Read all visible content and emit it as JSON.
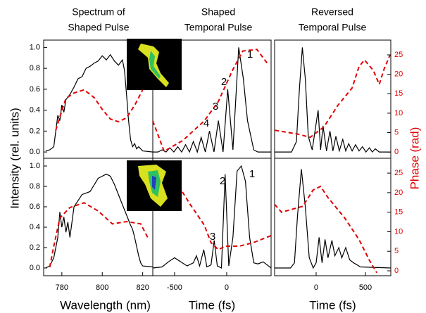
{
  "y_label": "Intensity (rel. units)",
  "y2_label": "Phase (rad)",
  "chart_data": [
    {
      "type": "line",
      "title": [
        "Spectrum of",
        "Shaped Pulse"
      ],
      "xlim": [
        771,
        825
      ],
      "ylim": [
        -0.06,
        1.07
      ],
      "y2lim": [
        -1.6,
        28.8
      ],
      "yticks": [
        {
          "value": 0,
          "label": "0.0"
        },
        {
          "value": 0.2,
          "label": "0.2"
        },
        {
          "value": 0.4,
          "label": "0.4"
        },
        {
          "value": 0.6,
          "label": "0.6"
        },
        {
          "value": 0.8,
          "label": "0.8"
        },
        {
          "value": 1,
          "label": "1.0"
        }
      ],
      "series": [
        {
          "color": "#000000",
          "x": [
            772,
            774,
            776,
            777,
            778,
            779,
            780,
            781,
            782,
            784,
            786,
            788,
            790,
            792,
            794,
            796,
            798,
            800,
            802,
            804,
            806,
            808,
            810,
            811,
            812,
            813,
            814,
            815,
            816,
            817,
            818,
            820,
            825
          ],
          "values": [
            0.01,
            0.02,
            0.05,
            0.2,
            0.35,
            0.3,
            0.45,
            0.38,
            0.5,
            0.55,
            0.62,
            0.7,
            0.72,
            0.8,
            0.82,
            0.85,
            0.87,
            0.92,
            0.88,
            0.93,
            0.87,
            0.83,
            0.88,
            0.78,
            0.55,
            0.3,
            0.12,
            0.05,
            0.08,
            0.03,
            0.05,
            0.01,
            0
          ]
        },
        {
          "color": "#e00000",
          "dashed": true,
          "axis": "y2",
          "x": [
            777,
            779,
            782,
            786,
            791,
            796,
            800,
            804,
            808,
            812,
            816,
            820,
            824
          ],
          "values": [
            5.6,
            9,
            13.8,
            15.2,
            16,
            14,
            11,
            8.5,
            7.8,
            8.8,
            12,
            16,
            18
          ]
        }
      ]
    },
    {
      "type": "line",
      "title": [
        "Shaped",
        "Temporal Pulse"
      ],
      "xlim": [
        -709,
        426
      ],
      "ylim": [
        -0.06,
        1.07
      ],
      "y2lim": [
        -1.6,
        28.8
      ],
      "annotations": [
        "1",
        "2",
        "3",
        "4"
      ],
      "series": [
        {
          "color": "#000000",
          "x": [
            -709,
            -660,
            -620,
            -582,
            -545,
            -507,
            -470,
            -432,
            -395,
            -357,
            -320,
            -282,
            -245,
            -205,
            -165,
            -122,
            -80,
            -35,
            10,
            60,
            115,
            160,
            200,
            260,
            300,
            426
          ],
          "values": [
            0,
            0,
            0.02,
            0,
            0.04,
            0,
            0.05,
            0,
            0.07,
            0,
            0.1,
            0,
            0.14,
            0,
            0.2,
            0,
            0.3,
            0,
            0.6,
            0.02,
            1,
            0.7,
            0.3,
            0.02,
            0,
            0
          ]
        },
        {
          "color": "#e00000",
          "dashed": true,
          "axis": "y2",
          "x": [
            -709,
            -600,
            -420,
            -215,
            -80,
            55,
            155,
            290,
            390
          ],
          "values": [
            8,
            0.2,
            3,
            8,
            13,
            21,
            26,
            26.4,
            22.8
          ]
        }
      ]
    },
    {
      "type": "line",
      "title": [
        "Reversed",
        "Temporal Pulse"
      ],
      "xlim": [
        -421,
        757
      ],
      "ylim": [
        -0.06,
        1.07
      ],
      "y2lim": [
        -1.6,
        28.8
      ],
      "y2ticks": [
        0,
        5,
        10,
        15,
        20,
        25
      ],
      "series": [
        {
          "color": "#000000",
          "x": [
            -421,
            -250,
            -200,
            -170,
            -140,
            -110,
            -80,
            -40,
            20,
            45,
            70,
            105,
            140,
            170,
            200,
            235,
            270,
            300,
            330,
            365,
            400,
            435,
            470,
            505,
            540,
            570,
            600,
            640,
            757
          ],
          "values": [
            0,
            0,
            0.1,
            0.6,
            1,
            0.7,
            0.15,
            0.02,
            0.4,
            0.02,
            0.25,
            0.01,
            0.2,
            0.01,
            0.15,
            0.01,
            0.12,
            0.01,
            0.08,
            0.01,
            0.07,
            0.01,
            0.05,
            0,
            0.04,
            0,
            0.03,
            0,
            0
          ]
        },
        {
          "color": "#e00000",
          "dashed": true,
          "axis": "y2",
          "x": [
            -421,
            -200,
            -60,
            80,
            220,
            365,
            435,
            490,
            580,
            640,
            690,
            750
          ],
          "values": [
            5.6,
            4.7,
            3.8,
            6.5,
            12,
            16.5,
            22,
            23.7,
            21,
            17.4,
            21.4,
            25
          ]
        }
      ]
    },
    {
      "type": "line",
      "xlim": [
        771,
        825
      ],
      "ylim": [
        -0.076,
        1.076
      ],
      "y2lim": [
        -1.26,
        28.8
      ],
      "xticks": [
        780,
        800,
        820
      ],
      "xlabel": "Wavelength (nm)",
      "yticks": [
        {
          "value": 0,
          "label": "0.0"
        },
        {
          "value": 0.2,
          "label": "0.2"
        },
        {
          "value": 0.4,
          "label": "0.4"
        },
        {
          "value": 0.6,
          "label": "0.6"
        },
        {
          "value": 0.8,
          "label": "0.8"
        },
        {
          "value": 1,
          "label": "1.0"
        }
      ],
      "series": [
        {
          "color": "#000000",
          "x": [
            772,
            774,
            776,
            778,
            779,
            780,
            781,
            782,
            783,
            784,
            786,
            790,
            794,
            798,
            802,
            804,
            806,
            808,
            810,
            812,
            814,
            815,
            816,
            818,
            819,
            820,
            825
          ],
          "values": [
            0,
            0.02,
            0.1,
            0.3,
            0.55,
            0.4,
            0.5,
            0.35,
            0.45,
            0.3,
            0.6,
            0.72,
            0.75,
            0.88,
            0.92,
            0.9,
            0.82,
            0.72,
            0.62,
            0.52,
            0.42,
            0.38,
            0.3,
            0.12,
            0.05,
            0.02,
            0.01
          ]
        },
        {
          "color": "#e00000",
          "dashed": true,
          "axis": "y2",
          "x": [
            774,
            776,
            779,
            784,
            791,
            798,
            805,
            812,
            819,
            823
          ],
          "values": [
            0.9,
            6.3,
            13.5,
            16.2,
            17.4,
            15.3,
            12,
            12.6,
            12,
            8
          ]
        }
      ]
    },
    {
      "type": "line",
      "xlim": [
        -709,
        426
      ],
      "ylim": [
        -0.076,
        1.076
      ],
      "y2lim": [
        -1.26,
        28.8
      ],
      "xticks": [
        -500,
        0
      ],
      "xlabel": "Time (fs)",
      "annotations": [
        "1",
        "2",
        "3"
      ],
      "series": [
        {
          "color": "#000000",
          "x": [
            -709,
            -620,
            -560,
            -500,
            -440,
            -380,
            -320,
            -290,
            -260,
            -220,
            -190,
            -150,
            -120,
            -90,
            -50,
            -15,
            20,
            60,
            100,
            140,
            180,
            220,
            260,
            300,
            350,
            426
          ],
          "values": [
            0,
            0.01,
            0.06,
            0.1,
            0.06,
            0.02,
            0.05,
            0.12,
            0.02,
            0.18,
            0.01,
            0.03,
            0.27,
            0.02,
            0,
            0.92,
            0.02,
            0.3,
            0.95,
            1,
            0.85,
            0.3,
            0.05,
            0.04,
            0.06,
            0
          ]
        },
        {
          "color": "#e00000",
          "dashed": true,
          "axis": "y2",
          "x": [
            -700,
            -600,
            -480,
            -350,
            -215,
            -150,
            -80,
            -15,
            120,
            255,
            426
          ],
          "values": [
            28,
            26,
            22.5,
            17,
            11.7,
            7.2,
            5.4,
            6.3,
            6.3,
            7.2,
            9
          ]
        }
      ]
    },
    {
      "type": "line",
      "xlim": [
        -421,
        757
      ],
      "ylim": [
        -0.076,
        1.076
      ],
      "y2lim": [
        -1.26,
        28.8
      ],
      "xticks": [
        0,
        500
      ],
      "xlabel": "Time (fs)",
      "y2ticks": [
        0,
        5,
        10,
        15,
        20,
        25
      ],
      "series": [
        {
          "color": "#000000",
          "x": [
            -421,
            -260,
            -220,
            -190,
            -150,
            -110,
            -70,
            -30,
            0,
            30,
            60,
            90,
            120,
            160,
            190,
            230,
            260,
            300,
            340,
            380,
            450,
            757
          ],
          "values": [
            0,
            0,
            0.05,
            0.5,
            0.97,
            0.6,
            0.1,
            0,
            0.05,
            0.3,
            0.05,
            0.28,
            0.1,
            0.27,
            0.12,
            0.2,
            0.1,
            0.2,
            0.08,
            0.05,
            0.01,
            0
          ]
        },
        {
          "color": "#e00000",
          "dashed": true,
          "axis": "y2",
          "x": [
            -421,
            -350,
            -135,
            -30,
            45,
            115,
            290,
            435,
            540,
            615
          ],
          "values": [
            17,
            15,
            16.5,
            20.7,
            21.6,
            18.9,
            13.5,
            8,
            2.7,
            -0.5
          ]
        }
      ]
    }
  ]
}
